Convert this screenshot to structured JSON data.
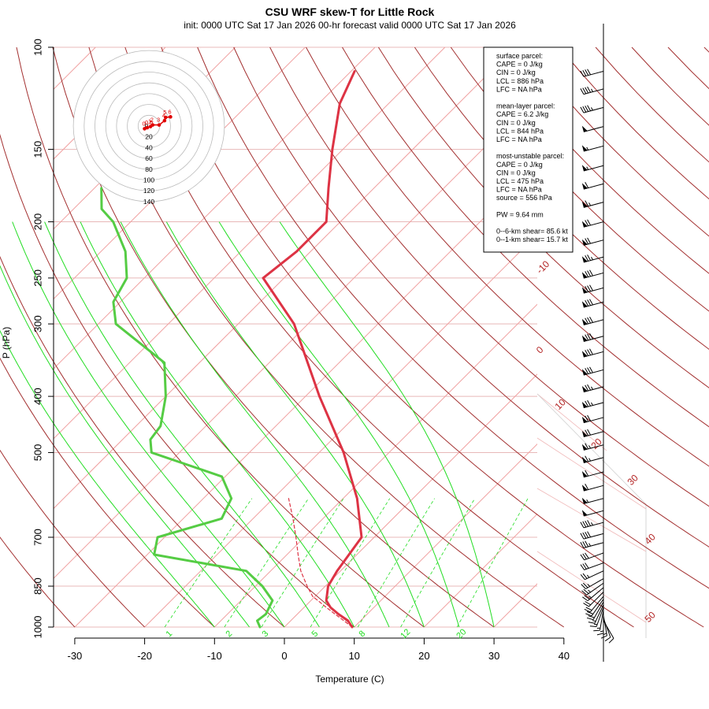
{
  "title": "CSU WRF skew-T for Little Rock",
  "subtitle": "init: 0000 UTC Sat 17 Jan 2026     00-hr forecast valid 0000 UTC Sat 17 Jan 2026",
  "colors": {
    "temperature": "#dd3344",
    "dewpoint": "#55cc44",
    "isotherm": "#b22222",
    "adiabat": "#a33030",
    "mixing_ratio": "#22dd22",
    "isobar": "#e8b8b8",
    "parcel": "#dd3344"
  },
  "info_box": {
    "lines": [
      "surface parcel:",
      "CAPE = 0 J/kg",
      "CIN = 0 J/kg",
      "LCL = 886 hPa",
      "LFC = NA hPa",
      "",
      "mean-layer parcel:",
      "CAPE = 6.2 J/kg",
      "CIN = 0 J/kg",
      "LCL = 844 hPa",
      "LFC = NA hPa",
      "",
      "most-unstable parcel:",
      "CAPE = 0 J/kg",
      "CIN = 0 J/kg",
      "LCL = 475 hPa",
      "LFC = NA hPa",
      "source = 556 hPa",
      "",
      "PW =  9.64 mm",
      "",
      "0--6-km shear= 85.6 kt",
      "0--1-km shear= 15.7 kt"
    ]
  },
  "hodograph": {
    "ring_labels": [
      "20",
      "40",
      "60",
      "80",
      "100",
      "120",
      "140"
    ],
    "center_label": "0",
    "point_labels": [
      "0",
      "0.5",
      "1",
      "2",
      "3",
      "4",
      "5",
      "6"
    ],
    "points_uv_kt": [
      [
        -8,
        -5
      ],
      [
        -3,
        -3
      ],
      [
        3,
        -1
      ],
      [
        7,
        2
      ],
      [
        19,
        2
      ],
      [
        29,
        10
      ],
      [
        31,
        16
      ],
      [
        40,
        17
      ]
    ]
  },
  "chart_data": {
    "type": "line",
    "title": "CSU WRF skew-T for Little Rock",
    "xlabel": "Temperature (C)",
    "ylabel": "P (hPa)",
    "xlim": [
      -33,
      43
    ],
    "ylim": [
      1000,
      100
    ],
    "y_scale": "log",
    "x_ticks": [
      -30,
      -20,
      -10,
      0,
      10,
      20,
      30,
      40
    ],
    "y_ticks": [
      100,
      150,
      200,
      250,
      300,
      400,
      500,
      700,
      850,
      1000
    ],
    "isotherm_labels": [
      "-10",
      "0",
      "10",
      "20",
      "30",
      "40",
      "50"
    ],
    "mixing_ratio_labels": [
      "1",
      "2",
      "3",
      "5",
      "8",
      "12",
      "20"
    ],
    "series": [
      {
        "name": "Temperature",
        "pressure": [
          1000,
          975,
          950,
          925,
          900,
          850,
          800,
          700,
          600,
          500,
          400,
          300,
          250,
          225,
          200,
          175,
          150,
          125,
          110
        ],
        "value": [
          9.7,
          8.2,
          5.9,
          3.8,
          2.2,
          0.4,
          -0.5,
          -1.8,
          -8,
          -16.5,
          -28,
          -42,
          -53,
          -52,
          -52,
          -56.5,
          -61.5,
          -67,
          -69.5
        ]
      },
      {
        "name": "Dewpoint",
        "pressure": [
          1000,
          975,
          950,
          925,
          900,
          850,
          800,
          750,
          700,
          650,
          600,
          550,
          500,
          475,
          450,
          400,
          350,
          300,
          275,
          250,
          225,
          200,
          190,
          175
        ],
        "value": [
          -3.5,
          -4.8,
          -4.5,
          -5,
          -5.5,
          -9,
          -13.5,
          -29,
          -31,
          -24.5,
          -26,
          -30.5,
          -44,
          -46,
          -46.5,
          -50,
          -55,
          -67.5,
          -71,
          -72.5,
          -76.5,
          -82.5,
          -86,
          -89
        ]
      },
      {
        "name": "Surface parcel",
        "pressure": [
          1000,
          975,
          950,
          925,
          900,
          886,
          850,
          800,
          750,
          700,
          650,
          600
        ],
        "value": [
          9.7,
          7.6,
          5.4,
          3.2,
          1.0,
          -0.3,
          -2.6,
          -5.7,
          -8.4,
          -11.2,
          -14.3,
          -17.8
        ]
      }
    ],
    "wind_barbs": {
      "pressure": [
        975,
        965,
        955,
        945,
        935,
        925,
        915,
        905,
        895,
        885,
        870,
        855,
        840,
        825,
        800,
        775,
        745,
        715,
        690,
        660,
        630,
        600,
        570,
        540,
        510,
        485,
        460,
        435,
        410,
        385,
        360,
        335,
        315,
        295,
        275,
        260,
        245,
        230,
        215,
        200,
        185,
        172,
        160,
        148,
        137,
        127,
        118,
        110
      ],
      "speed_kt": [
        10,
        10,
        15,
        15,
        15,
        15,
        15,
        20,
        20,
        20,
        20,
        25,
        25,
        25,
        25,
        30,
        30,
        35,
        40,
        45,
        50,
        55,
        60,
        60,
        65,
        65,
        70,
        70,
        75,
        75,
        80,
        80,
        80,
        80,
        80,
        80,
        80,
        75,
        70,
        70,
        65,
        60,
        55,
        55,
        50,
        45,
        45,
        40
      ],
      "direction_deg": [
        150,
        160,
        170,
        180,
        190,
        200,
        205,
        210,
        215,
        220,
        225,
        230,
        235,
        240,
        245,
        250,
        250,
        255,
        255,
        255,
        255,
        255,
        255,
        255,
        255,
        255,
        255,
        255,
        255,
        255,
        255,
        255,
        255,
        255,
        255,
        255,
        255,
        255,
        255,
        255,
        255,
        255,
        255,
        255,
        255,
        255,
        255,
        255
      ]
    }
  }
}
